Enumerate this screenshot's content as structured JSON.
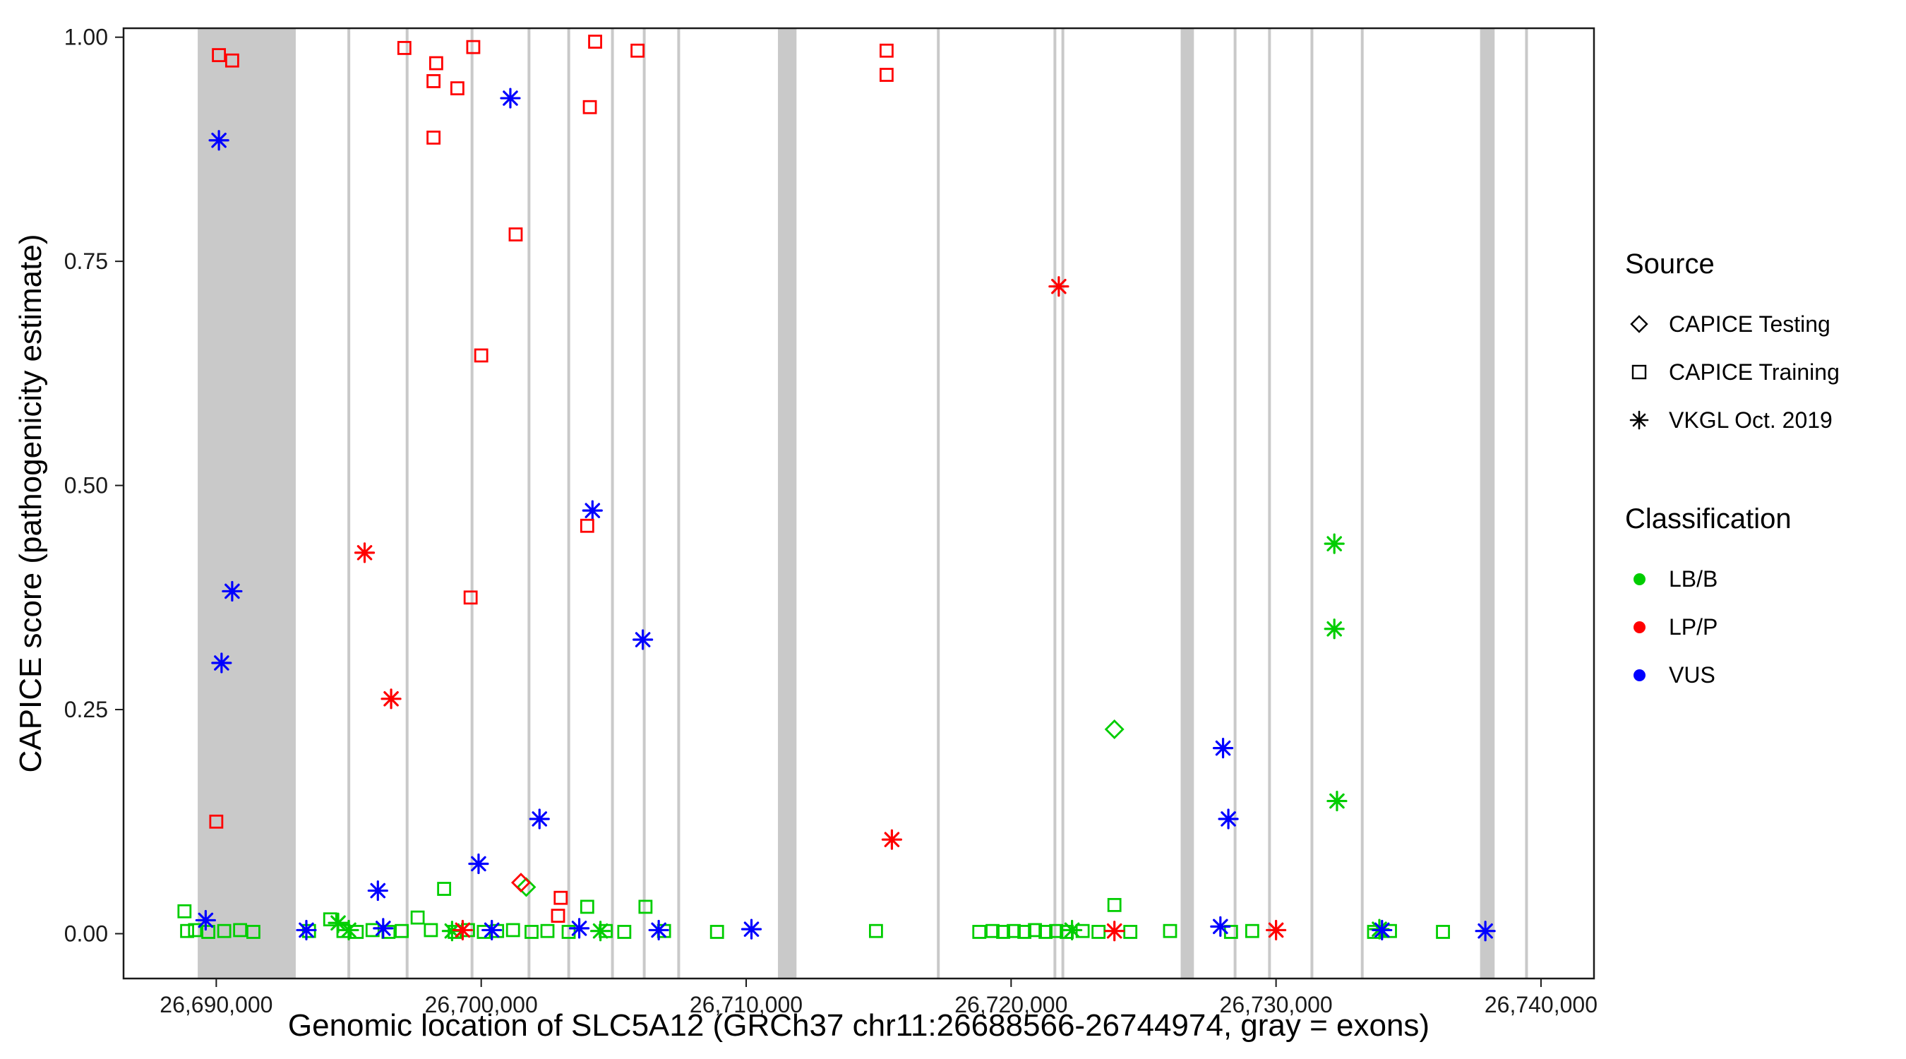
{
  "legend": {
    "source": {
      "title": "Source",
      "items": [
        {
          "label": "CAPICE Testing",
          "marker": "diamond"
        },
        {
          "label": "CAPICE Training",
          "marker": "square"
        },
        {
          "label": "VKGL Oct. 2019",
          "marker": "asterisk"
        }
      ]
    },
    "classification": {
      "title": "Classification",
      "items": [
        {
          "label": "LB/B",
          "color": "#00CD00"
        },
        {
          "label": "LP/P",
          "color": "#FF0000"
        },
        {
          "label": "VUS",
          "color": "#0000FF"
        }
      ]
    }
  },
  "chart_data": {
    "type": "scatter",
    "title": "",
    "xlabel": "Genomic location of SLC5A12 (GRCh37 chr11:26688566-26744974, gray = exons)",
    "ylabel": "CAPICE score (pathogenicity estimate)",
    "x_domain": [
      26686500,
      26742000
    ],
    "y_domain": [
      -0.05,
      1.01
    ],
    "x_ticks": [
      {
        "value": 26690000,
        "label": "26,690,000"
      },
      {
        "value": 26700000,
        "label": "26,700,000"
      },
      {
        "value": 26710000,
        "label": "26,710,000"
      },
      {
        "value": 26720000,
        "label": "26,720,000"
      },
      {
        "value": 26730000,
        "label": "26,730,000"
      },
      {
        "value": 26740000,
        "label": "26,740,000"
      }
    ],
    "y_ticks": [
      {
        "value": 0.0,
        "label": "0.00"
      },
      {
        "value": 0.25,
        "label": "0.25"
      },
      {
        "value": 0.5,
        "label": "0.50"
      },
      {
        "value": 0.75,
        "label": "0.75"
      },
      {
        "value": 1.0,
        "label": "1.00"
      }
    ],
    "legend_position": "right",
    "grid": false,
    "exon_color": "#C9C9C9",
    "colors": {
      "LB/B": "#00CD00",
      "LP/P": "#FF0000",
      "VUS": "#0000FF"
    },
    "shapes": {
      "CAPICE Testing": "diamond",
      "CAPICE Training": "square",
      "VKGL Oct. 2019": "asterisk"
    },
    "exons": [
      [
        26689300,
        26693000
      ],
      [
        26694950,
        26695040
      ],
      [
        26697150,
        26697240
      ],
      [
        26699600,
        26699690
      ],
      [
        26701750,
        26701840
      ],
      [
        26703250,
        26703340
      ],
      [
        26704900,
        26704990
      ],
      [
        26706100,
        26706190
      ],
      [
        26707400,
        26707490
      ],
      [
        26711200,
        26711900
      ],
      [
        26717200,
        26717290
      ],
      [
        26721600,
        26721690
      ],
      [
        26721900,
        26721990
      ],
      [
        26726400,
        26726900
      ],
      [
        26728400,
        26728490
      ],
      [
        26729700,
        26729790
      ],
      [
        26731300,
        26731390
      ],
      [
        26733200,
        26733290
      ],
      [
        26737700,
        26738250
      ],
      [
        26739400,
        26739490
      ]
    ],
    "points": {
      "columns": [
        "x",
        "y",
        "classification",
        "source"
      ],
      "rows": [
        [
          26688800,
          0.025,
          "LB/B",
          "CAPICE Training"
        ],
        [
          26688900,
          0.003,
          "LB/B",
          "CAPICE Training"
        ],
        [
          26689200,
          0.004,
          "LB/B",
          "CAPICE Training"
        ],
        [
          26689700,
          0.002,
          "LB/B",
          "CAPICE Training"
        ],
        [
          26690300,
          0.003,
          "LB/B",
          "CAPICE Training"
        ],
        [
          26690900,
          0.004,
          "LB/B",
          "CAPICE Training"
        ],
        [
          26691400,
          0.002,
          "LB/B",
          "CAPICE Training"
        ],
        [
          26693500,
          0.003,
          "LB/B",
          "CAPICE Training"
        ],
        [
          26694300,
          0.016,
          "LB/B",
          "CAPICE Training"
        ],
        [
          26694800,
          0.003,
          "LB/B",
          "CAPICE Training"
        ],
        [
          26695300,
          0.002,
          "LB/B",
          "CAPICE Training"
        ],
        [
          26695900,
          0.004,
          "LB/B",
          "CAPICE Training"
        ],
        [
          26696500,
          0.002,
          "LB/B",
          "CAPICE Training"
        ],
        [
          26697000,
          0.003,
          "LB/B",
          "CAPICE Training"
        ],
        [
          26697600,
          0.018,
          "LB/B",
          "CAPICE Training"
        ],
        [
          26698100,
          0.004,
          "LB/B",
          "CAPICE Training"
        ],
        [
          26698600,
          0.05,
          "LB/B",
          "CAPICE Training"
        ],
        [
          26699000,
          0.002,
          "LB/B",
          "CAPICE Training"
        ],
        [
          26699500,
          0.004,
          "LB/B",
          "CAPICE Training"
        ],
        [
          26700100,
          0.002,
          "LB/B",
          "CAPICE Training"
        ],
        [
          26700600,
          0.003,
          "LB/B",
          "CAPICE Training"
        ],
        [
          26701200,
          0.004,
          "LB/B",
          "CAPICE Training"
        ],
        [
          26701900,
          0.002,
          "LB/B",
          "CAPICE Training"
        ],
        [
          26702500,
          0.003,
          "LB/B",
          "CAPICE Training"
        ],
        [
          26703300,
          0.002,
          "LB/B",
          "CAPICE Training"
        ],
        [
          26704000,
          0.03,
          "LB/B",
          "CAPICE Training"
        ],
        [
          26704700,
          0.003,
          "LB/B",
          "CAPICE Training"
        ],
        [
          26705400,
          0.002,
          "LB/B",
          "CAPICE Training"
        ],
        [
          26706200,
          0.03,
          "LB/B",
          "CAPICE Training"
        ],
        [
          26706900,
          0.003,
          "LB/B",
          "CAPICE Training"
        ],
        [
          26708900,
          0.002,
          "LB/B",
          "CAPICE Training"
        ],
        [
          26714900,
          0.003,
          "LB/B",
          "CAPICE Training"
        ],
        [
          26718800,
          0.002,
          "LB/B",
          "CAPICE Training"
        ],
        [
          26719300,
          0.003,
          "LB/B",
          "CAPICE Training"
        ],
        [
          26719700,
          0.002,
          "LB/B",
          "CAPICE Training"
        ],
        [
          26720100,
          0.003,
          "LB/B",
          "CAPICE Training"
        ],
        [
          26720500,
          0.002,
          "LB/B",
          "CAPICE Training"
        ],
        [
          26720900,
          0.004,
          "LB/B",
          "CAPICE Training"
        ],
        [
          26721300,
          0.002,
          "LB/B",
          "CAPICE Training"
        ],
        [
          26721700,
          0.003,
          "LB/B",
          "CAPICE Training"
        ],
        [
          26722100,
          0.002,
          "LB/B",
          "CAPICE Training"
        ],
        [
          26722700,
          0.003,
          "LB/B",
          "CAPICE Training"
        ],
        [
          26723300,
          0.002,
          "LB/B",
          "CAPICE Training"
        ],
        [
          26723900,
          0.032,
          "LB/B",
          "CAPICE Training"
        ],
        [
          26724500,
          0.002,
          "LB/B",
          "CAPICE Training"
        ],
        [
          26726000,
          0.003,
          "LB/B",
          "CAPICE Training"
        ],
        [
          26728300,
          0.002,
          "LB/B",
          "CAPICE Training"
        ],
        [
          26729100,
          0.003,
          "LB/B",
          "CAPICE Training"
        ],
        [
          26733700,
          0.002,
          "LB/B",
          "CAPICE Training"
        ],
        [
          26734300,
          0.003,
          "LB/B",
          "CAPICE Training"
        ],
        [
          26736300,
          0.002,
          "LB/B",
          "CAPICE Training"
        ],
        [
          26732200,
          0.435,
          "LB/B",
          "VKGL Oct. 2019"
        ],
        [
          26732200,
          0.34,
          "LB/B",
          "VKGL Oct. 2019"
        ],
        [
          26732300,
          0.148,
          "LB/B",
          "VKGL Oct. 2019"
        ],
        [
          26694600,
          0.012,
          "LB/B",
          "VKGL Oct. 2019"
        ],
        [
          26695000,
          0.004,
          "LB/B",
          "VKGL Oct. 2019"
        ],
        [
          26698900,
          0.003,
          "LB/B",
          "VKGL Oct. 2019"
        ],
        [
          26704500,
          0.003,
          "LB/B",
          "VKGL Oct. 2019"
        ],
        [
          26722300,
          0.004,
          "LB/B",
          "VKGL Oct. 2019"
        ],
        [
          26733900,
          0.005,
          "LB/B",
          "VKGL Oct. 2019"
        ],
        [
          26723900,
          0.228,
          "LB/B",
          "CAPICE Testing"
        ],
        [
          26701700,
          0.052,
          "LB/B",
          "CAPICE Testing"
        ],
        [
          26690100,
          0.885,
          "VUS",
          "VKGL Oct. 2019"
        ],
        [
          26701100,
          0.932,
          "VUS",
          "VKGL Oct. 2019"
        ],
        [
          26704200,
          0.472,
          "VUS",
          "VKGL Oct. 2019"
        ],
        [
          26706100,
          0.328,
          "VUS",
          "VKGL Oct. 2019"
        ],
        [
          26690600,
          0.382,
          "VUS",
          "VKGL Oct. 2019"
        ],
        [
          26690200,
          0.302,
          "VUS",
          "VKGL Oct. 2019"
        ],
        [
          26702200,
          0.128,
          "VUS",
          "VKGL Oct. 2019"
        ],
        [
          26699900,
          0.078,
          "VUS",
          "VKGL Oct. 2019"
        ],
        [
          26696100,
          0.048,
          "VUS",
          "VKGL Oct. 2019"
        ],
        [
          26728000,
          0.207,
          "VUS",
          "VKGL Oct. 2019"
        ],
        [
          26728200,
          0.128,
          "VUS",
          "VKGL Oct. 2019"
        ],
        [
          26689600,
          0.015,
          "VUS",
          "VKGL Oct. 2019"
        ],
        [
          26693400,
          0.004,
          "VUS",
          "VKGL Oct. 2019"
        ],
        [
          26696300,
          0.006,
          "VUS",
          "VKGL Oct. 2019"
        ],
        [
          26700400,
          0.004,
          "VUS",
          "VKGL Oct. 2019"
        ],
        [
          26703700,
          0.006,
          "VUS",
          "VKGL Oct. 2019"
        ],
        [
          26706700,
          0.004,
          "VUS",
          "VKGL Oct. 2019"
        ],
        [
          26710200,
          0.005,
          "VUS",
          "VKGL Oct. 2019"
        ],
        [
          26727900,
          0.008,
          "VUS",
          "VKGL Oct. 2019"
        ],
        [
          26734000,
          0.004,
          "VUS",
          "VKGL Oct. 2019"
        ],
        [
          26737900,
          0.003,
          "VUS",
          "VKGL Oct. 2019"
        ],
        [
          26690100,
          0.98,
          "LP/P",
          "CAPICE Training"
        ],
        [
          26690600,
          0.974,
          "LP/P",
          "CAPICE Training"
        ],
        [
          26690000,
          0.125,
          "LP/P",
          "CAPICE Training"
        ],
        [
          26697100,
          0.988,
          "LP/P",
          "CAPICE Training"
        ],
        [
          26698300,
          0.971,
          "LP/P",
          "CAPICE Training"
        ],
        [
          26698200,
          0.951,
          "LP/P",
          "CAPICE Training"
        ],
        [
          26699700,
          0.989,
          "LP/P",
          "CAPICE Training"
        ],
        [
          26699100,
          0.943,
          "LP/P",
          "CAPICE Training"
        ],
        [
          26698200,
          0.888,
          "LP/P",
          "CAPICE Training"
        ],
        [
          26701300,
          0.78,
          "LP/P",
          "CAPICE Training"
        ],
        [
          26700000,
          0.645,
          "LP/P",
          "CAPICE Training"
        ],
        [
          26699600,
          0.375,
          "LP/P",
          "CAPICE Training"
        ],
        [
          26704300,
          0.995,
          "LP/P",
          "CAPICE Training"
        ],
        [
          26705900,
          0.985,
          "LP/P",
          "CAPICE Training"
        ],
        [
          26704100,
          0.922,
          "LP/P",
          "CAPICE Training"
        ],
        [
          26704000,
          0.455,
          "LP/P",
          "CAPICE Training"
        ],
        [
          26715300,
          0.985,
          "LP/P",
          "CAPICE Training"
        ],
        [
          26715300,
          0.958,
          "LP/P",
          "CAPICE Training"
        ],
        [
          26703000,
          0.04,
          "LP/P",
          "CAPICE Training"
        ],
        [
          26702900,
          0.02,
          "LP/P",
          "CAPICE Training"
        ],
        [
          26695600,
          0.425,
          "LP/P",
          "VKGL Oct. 2019"
        ],
        [
          26696600,
          0.262,
          "LP/P",
          "VKGL Oct. 2019"
        ],
        [
          26721800,
          0.722,
          "LP/P",
          "VKGL Oct. 2019"
        ],
        [
          26715500,
          0.105,
          "LP/P",
          "VKGL Oct. 2019"
        ],
        [
          26699300,
          0.004,
          "LP/P",
          "VKGL Oct. 2019"
        ],
        [
          26723900,
          0.003,
          "LP/P",
          "VKGL Oct. 2019"
        ],
        [
          26730000,
          0.004,
          "LP/P",
          "VKGL Oct. 2019"
        ],
        [
          26701500,
          0.057,
          "LP/P",
          "CAPICE Testing"
        ]
      ]
    }
  }
}
